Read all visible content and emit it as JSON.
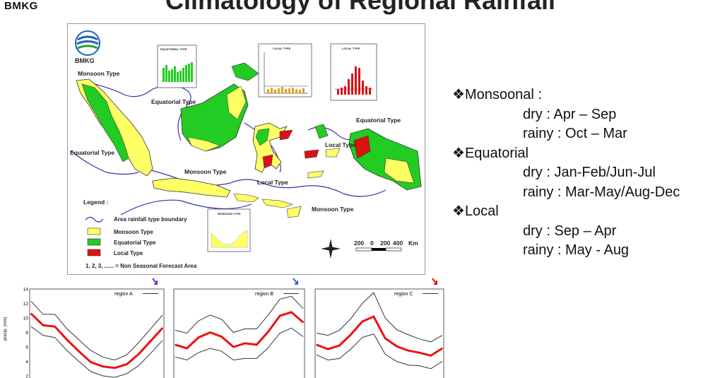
{
  "brand": "BMKG",
  "title": "Climatology of Regional Rainfall",
  "map": {
    "logo_text": "BMKG",
    "labels": {
      "monsoon_nw": "Monsoon Type",
      "equatorial_borneo": "Equatorial Type",
      "equatorial_sumatra": "Equatorial Type",
      "monsoon_java": "Monsoon Type",
      "local_sulawesi": "Local Type",
      "local_maluku": "Local Type",
      "equatorial_papua": "Equatorial Type",
      "monsoon_south": "Monsoon Type"
    },
    "inset_titles": {
      "equatorial": "EQUATORIAL TYPE",
      "local_1": "LOCAL TYPE",
      "local_2": "LOCAL TYPE",
      "monsoon": "MONSOON TYPE"
    },
    "legend": {
      "title": "Legend :",
      "boundary": "Area rainfall type boundary",
      "monsoon": "Monsoon Type",
      "equatorial": "Equatorial Type",
      "local": "Local Type",
      "note": "1, 2, 3, ...... = Non Seasonal Forecast Area"
    },
    "scale": {
      "ticks": [
        "200",
        "0",
        "200",
        "400"
      ],
      "unit": "Km"
    },
    "colors": {
      "monsoon": "#ffff66",
      "equatorial": "#22cc22",
      "local": "#dd1111",
      "boundary": "#3333aa",
      "land_outline": "#333333"
    }
  },
  "climate_summary": {
    "monsoonal": {
      "title": "Monsoonal :",
      "dry": "dry : Apr – Sep",
      "rainy": "rainy : Oct – Mar"
    },
    "equatorial": {
      "title": "Equatorial",
      "dry": "dry : Jan-Feb/Jun-Jul",
      "rainy": "rainy : Mar-May/Aug-Dec"
    },
    "local": {
      "title": "Local",
      "dry": "dry : Sep – Apr",
      "rainy": "rainy : May - Aug"
    }
  },
  "chart_data": [
    {
      "type": "line",
      "ylabel": "precip. (mm)",
      "yticks": [
        "14",
        "12",
        "10",
        "8",
        "6",
        "4",
        "2"
      ],
      "ylim": [
        2,
        14
      ],
      "legend": "region A",
      "series": [
        {
          "name": "region A",
          "values": [
            10.6,
            9.0,
            8.8,
            7.0,
            5.4,
            3.9,
            3.3,
            3.1,
            3.6,
            5.0,
            6.8,
            8.6
          ]
        }
      ],
      "upper": [
        12.3,
        10.5,
        10.5,
        8.5,
        7.0,
        5.5,
        4.6,
        4.2,
        4.9,
        6.6,
        8.5,
        10.4
      ],
      "lower": [
        8.8,
        7.6,
        7.3,
        5.5,
        4.0,
        2.6,
        2.0,
        1.8,
        2.3,
        3.4,
        5.1,
        6.9
      ]
    },
    {
      "type": "line",
      "legend": "region B",
      "series": [
        {
          "name": "region B",
          "values": [
            6.3,
            5.8,
            7.3,
            8.0,
            7.4,
            6.0,
            6.5,
            6.3,
            8.1,
            10.3,
            10.8,
            9.4
          ]
        }
      ],
      "upper": [
        8.3,
        7.9,
        9.6,
        10.4,
        9.8,
        8.0,
        8.5,
        8.5,
        10.4,
        12.6,
        13.0,
        11.3
      ],
      "lower": [
        4.6,
        4.2,
        5.2,
        5.8,
        5.4,
        4.2,
        4.4,
        4.4,
        5.9,
        7.9,
        8.6,
        7.4
      ]
    },
    {
      "type": "line",
      "legend": "region C",
      "series": [
        {
          "name": "region C",
          "values": [
            6.3,
            5.7,
            6.2,
            7.7,
            9.5,
            10.2,
            7.2,
            6.1,
            5.5,
            5.2,
            4.8,
            5.8
          ]
        }
      ],
      "upper": [
        7.9,
        7.6,
        8.3,
        9.9,
        12.0,
        13.5,
        10.0,
        8.4,
        7.7,
        7.1,
        6.7,
        7.6
      ],
      "lower": [
        4.9,
        4.2,
        4.4,
        5.7,
        7.3,
        7.8,
        5.0,
        4.0,
        3.5,
        3.4,
        3.0,
        4.0
      ]
    }
  ]
}
